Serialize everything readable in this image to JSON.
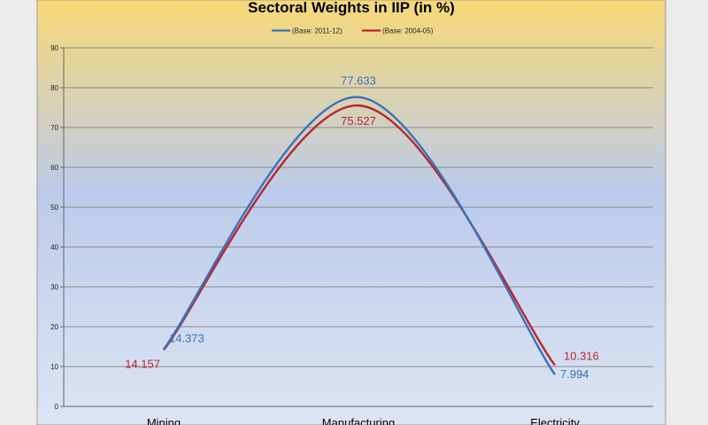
{
  "colors": {
    "series_2011": "#3a72b8",
    "series_2004": "#b8262c",
    "grid": "#8a8a8a",
    "bg_top": "#f8d978",
    "bg_mid": "#bccbea",
    "bg_bottom": "#dde5f4"
  },
  "chart_data": {
    "type": "line",
    "title": "Sectoral Weights in IIP (in %)",
    "categories": [
      "Mining",
      "Manufacturing",
      "Electricity"
    ],
    "series": [
      {
        "name": "(Base: 2011-12)",
        "values": [
          14.373,
          77.633,
          7.994
        ],
        "labels": [
          "14.373",
          "77.633",
          "7.994"
        ]
      },
      {
        "name": "(Base: 2004-05)",
        "values": [
          14.157,
          75.527,
          10.316
        ],
        "labels": [
          "14.157",
          "75.527",
          "10.316"
        ]
      }
    ],
    "ylim": [
      0,
      90
    ],
    "yticks": [
      "0",
      "10",
      "20",
      "30",
      "40",
      "50",
      "60",
      "70",
      "80",
      "90"
    ],
    "grid": true,
    "legend_position": "top-center",
    "smooth": true
  }
}
